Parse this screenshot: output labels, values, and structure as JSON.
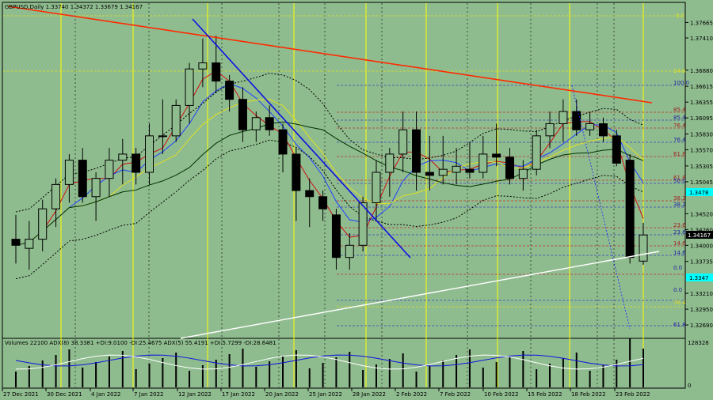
{
  "header": {
    "symbol_info": "GBPUSD,Daily  1.33740  1.34372  1.33679  1.34167"
  },
  "indicator_header": {
    "text": "Volumes 22100  ADX(8) 38.3381  +DI:9.0100  -DI:25.4675  ADX(5) 55.4191  +DI:5.7299  -DI:28.6481"
  },
  "colors": {
    "background": "#8fbc8f",
    "candle_up": "#8fbc8f",
    "candle_down": "#000000",
    "trend_red": "#ff2a00",
    "trend_blue": "#1010e0",
    "support_white": "#ffffff",
    "session_yellow": "#ffff00",
    "current_price_bg": "#000000",
    "cyan_box": "#00ffff"
  },
  "chart_data": {
    "type": "candlestick",
    "price_axis": {
      "labels": [
        "1.37665",
        "1.37410",
        "1.36880",
        "1.36615",
        "1.36355",
        "1.36095",
        "1.35830",
        "1.35570",
        "1.35305",
        "1.35045",
        "1.34520",
        "1.34260",
        "1.34000",
        "1.33735",
        "1.33210",
        "1.32950",
        "1.32690"
      ],
      "current_price": "1.34167",
      "cyan_marker_1": "1.3478",
      "cyan_marker_2": "1.3347",
      "ylim": [
        1.326,
        1.378
      ]
    },
    "dates": [
      "27 Dec 2021",
      "30 Dec 2021",
      "4 Jan 2022",
      "7 Jan 2022",
      "12 Jan 2022",
      "17 Jan 2022",
      "20 Jan 2022",
      "25 Jan 2022",
      "28 Jan 2022",
      "2 Feb 2022",
      "7 Feb 2022",
      "10 Feb 2022",
      "15 Feb 2022",
      "18 Feb 2022",
      "23 Feb 2022"
    ],
    "candles": [
      [
        1.341,
        1.345,
        1.337,
        1.34
      ],
      [
        1.3395,
        1.344,
        1.336,
        1.341
      ],
      [
        1.341,
        1.3475,
        1.339,
        1.346
      ],
      [
        1.346,
        1.351,
        1.343,
        1.35
      ],
      [
        1.35,
        1.355,
        1.347,
        1.354
      ],
      [
        1.354,
        1.356,
        1.347,
        1.348
      ],
      [
        1.348,
        1.352,
        1.344,
        1.351
      ],
      [
        1.351,
        1.356,
        1.348,
        1.354
      ],
      [
        1.354,
        1.3575,
        1.35,
        1.355
      ],
      [
        1.355,
        1.356,
        1.35,
        1.352
      ],
      [
        1.352,
        1.36,
        1.35,
        1.358
      ],
      [
        1.358,
        1.364,
        1.355,
        1.358
      ],
      [
        1.358,
        1.364,
        1.357,
        1.363
      ],
      [
        1.363,
        1.37,
        1.36,
        1.369
      ],
      [
        1.369,
        1.374,
        1.366,
        1.37
      ],
      [
        1.37,
        1.3745,
        1.365,
        1.367
      ],
      [
        1.367,
        1.368,
        1.362,
        1.364
      ],
      [
        1.364,
        1.366,
        1.357,
        1.359
      ],
      [
        1.359,
        1.362,
        1.357,
        1.361
      ],
      [
        1.361,
        1.363,
        1.358,
        1.359
      ],
      [
        1.359,
        1.36,
        1.352,
        1.355
      ],
      [
        1.355,
        1.356,
        1.344,
        1.349
      ],
      [
        1.349,
        1.351,
        1.343,
        1.348
      ],
      [
        1.348,
        1.349,
        1.344,
        1.346
      ],
      [
        1.345,
        1.346,
        1.336,
        1.338
      ],
      [
        1.338,
        1.342,
        1.336,
        1.34
      ],
      [
        1.34,
        1.348,
        1.339,
        1.347
      ],
      [
        1.347,
        1.354,
        1.344,
        1.352
      ],
      [
        1.352,
        1.356,
        1.348,
        1.355
      ],
      [
        1.355,
        1.362,
        1.352,
        1.359
      ],
      [
        1.359,
        1.362,
        1.349,
        1.352
      ],
      [
        1.352,
        1.358,
        1.349,
        1.3515
      ],
      [
        1.3515,
        1.358,
        1.35,
        1.3525
      ],
      [
        1.352,
        1.356,
        1.35,
        1.353
      ],
      [
        1.3525,
        1.357,
        1.351,
        1.352
      ],
      [
        1.352,
        1.358,
        1.351,
        1.355
      ],
      [
        1.355,
        1.36,
        1.353,
        1.3545
      ],
      [
        1.3545,
        1.356,
        1.35,
        1.351
      ],
      [
        1.351,
        1.354,
        1.349,
        1.3525
      ],
      [
        1.3525,
        1.359,
        1.3515,
        1.358
      ],
      [
        1.358,
        1.362,
        1.356,
        1.36
      ],
      [
        1.36,
        1.364,
        1.357,
        1.362
      ],
      [
        1.362,
        1.364,
        1.358,
        1.359
      ],
      [
        1.359,
        1.362,
        1.358,
        1.36
      ],
      [
        1.36,
        1.361,
        1.357,
        1.358
      ],
      [
        1.358,
        1.359,
        1.353,
        1.3535
      ],
      [
        1.354,
        1.355,
        1.337,
        1.338
      ],
      [
        1.3374,
        1.3437,
        1.3368,
        1.3417
      ]
    ],
    "fib_levels_right": [
      "100.0",
      "85.4",
      "85.4",
      "76.4",
      "76.4",
      "61.8",
      "61.8",
      "50.0",
      "38.2",
      "38.2",
      "23.6",
      "23.6",
      "14.6",
      "14.6",
      "0.0",
      "0.0",
      "76.4",
      "61.8"
    ],
    "fib_levels_top": [
      "0.0",
      "14.6"
    ],
    "volume_axis": {
      "max_label": "128328",
      "min_label": "0"
    }
  }
}
